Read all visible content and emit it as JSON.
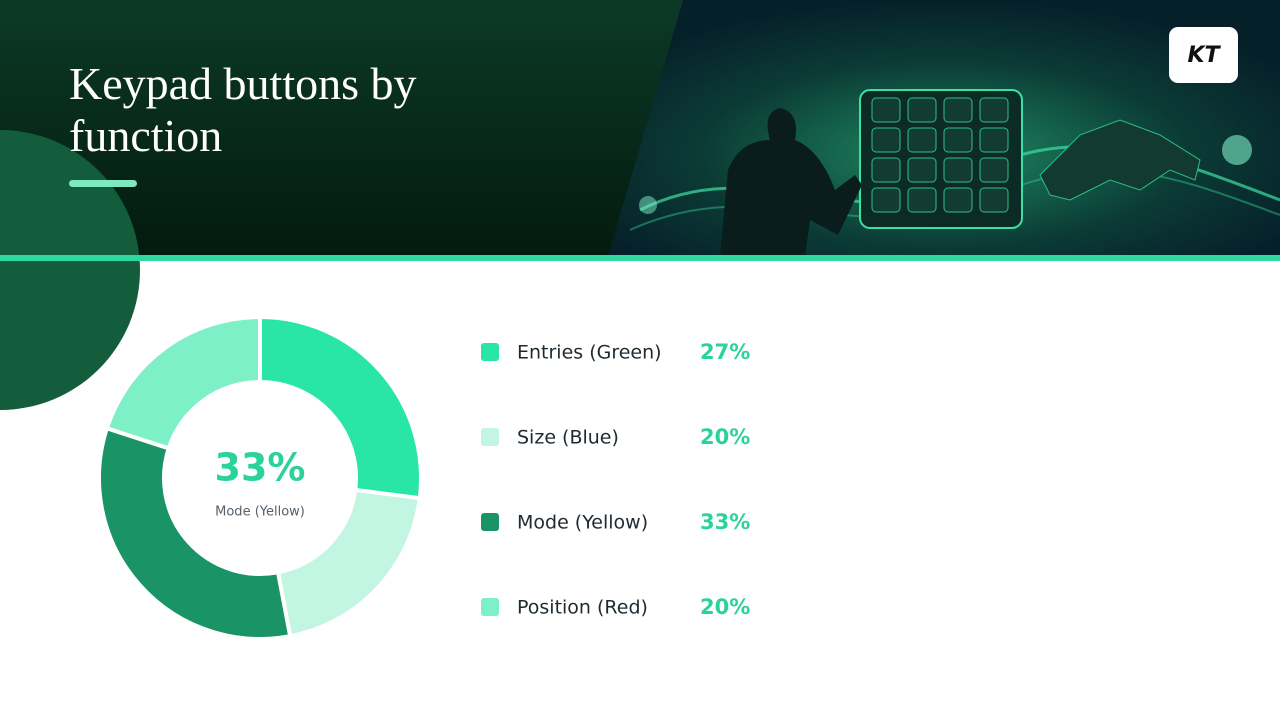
{
  "logo": "KT",
  "chart_data": {
    "type": "donut",
    "title": "Keypad buttons by function",
    "categories": [
      "Entries (Green)",
      "Size (Blue)",
      "Mode (Yellow)",
      "Position (Red)"
    ],
    "values": [
      27,
      20,
      33,
      20
    ],
    "value_labels": [
      "27%",
      "20%",
      "33%",
      "20%"
    ],
    "colors": [
      "#2ae6a6",
      "#c2f5e2",
      "#1a9466",
      "#7ef0c8"
    ],
    "highlight": 2
  }
}
